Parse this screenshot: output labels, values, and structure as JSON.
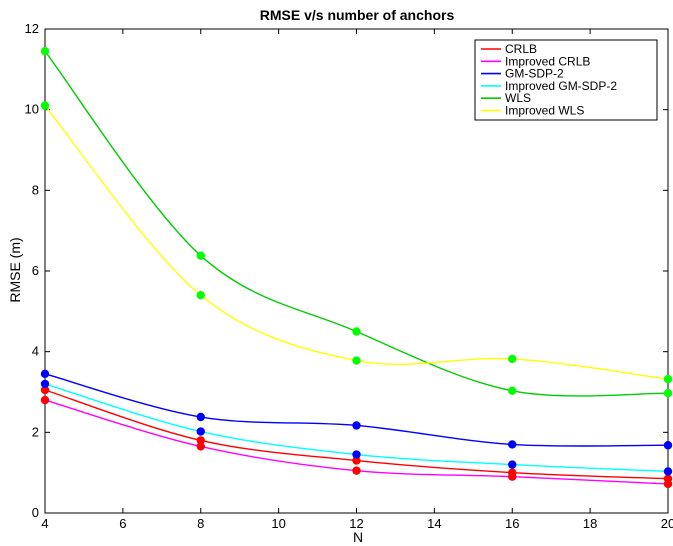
{
  "chart_data": {
    "type": "line",
    "title": "RMSE v/s number of anchors",
    "xlabel": "N",
    "ylabel": "RMSE (m)",
    "xlim": [
      4,
      20
    ],
    "ylim": [
      0,
      12
    ],
    "xticks": [
      4,
      6,
      8,
      10,
      12,
      14,
      16,
      18,
      20
    ],
    "yticks": [
      0,
      2,
      4,
      6,
      8,
      10,
      12
    ],
    "grid": false,
    "legend_position": "top-right",
    "x": [
      4,
      8,
      12,
      16,
      20
    ],
    "series": [
      {
        "name": "CRLB",
        "color": "#ff0000",
        "values": [
          3.05,
          1.8,
          1.3,
          1.0,
          0.85
        ]
      },
      {
        "name": "Improved CRLB",
        "color": "#ff00ff",
        "values": [
          2.8,
          1.65,
          1.05,
          0.9,
          0.72
        ]
      },
      {
        "name": "GM-SDP-2",
        "color": "#0000ff",
        "values": [
          3.45,
          2.38,
          2.17,
          1.7,
          1.68
        ]
      },
      {
        "name": "Improved GM-SDP-2",
        "color": "#00ffff",
        "values": [
          3.2,
          2.02,
          1.45,
          1.2,
          1.03
        ]
      },
      {
        "name": "WLS",
        "color": "#00cc00",
        "values": [
          11.45,
          6.38,
          4.5,
          3.03,
          2.97
        ]
      },
      {
        "name": "Improved WLS",
        "color": "#ffff00",
        "values": [
          10.1,
          5.4,
          3.78,
          3.82,
          3.32
        ]
      }
    ],
    "markers": {
      "color_map": {
        "CRLB": "#ff0000",
        "Improved CRLB": "#ff0000",
        "GM-SDP-2": "#0000ff",
        "Improved GM-SDP-2": "#0000ff",
        "WLS": "#00ff00",
        "Improved WLS": "#00ff00"
      }
    }
  }
}
